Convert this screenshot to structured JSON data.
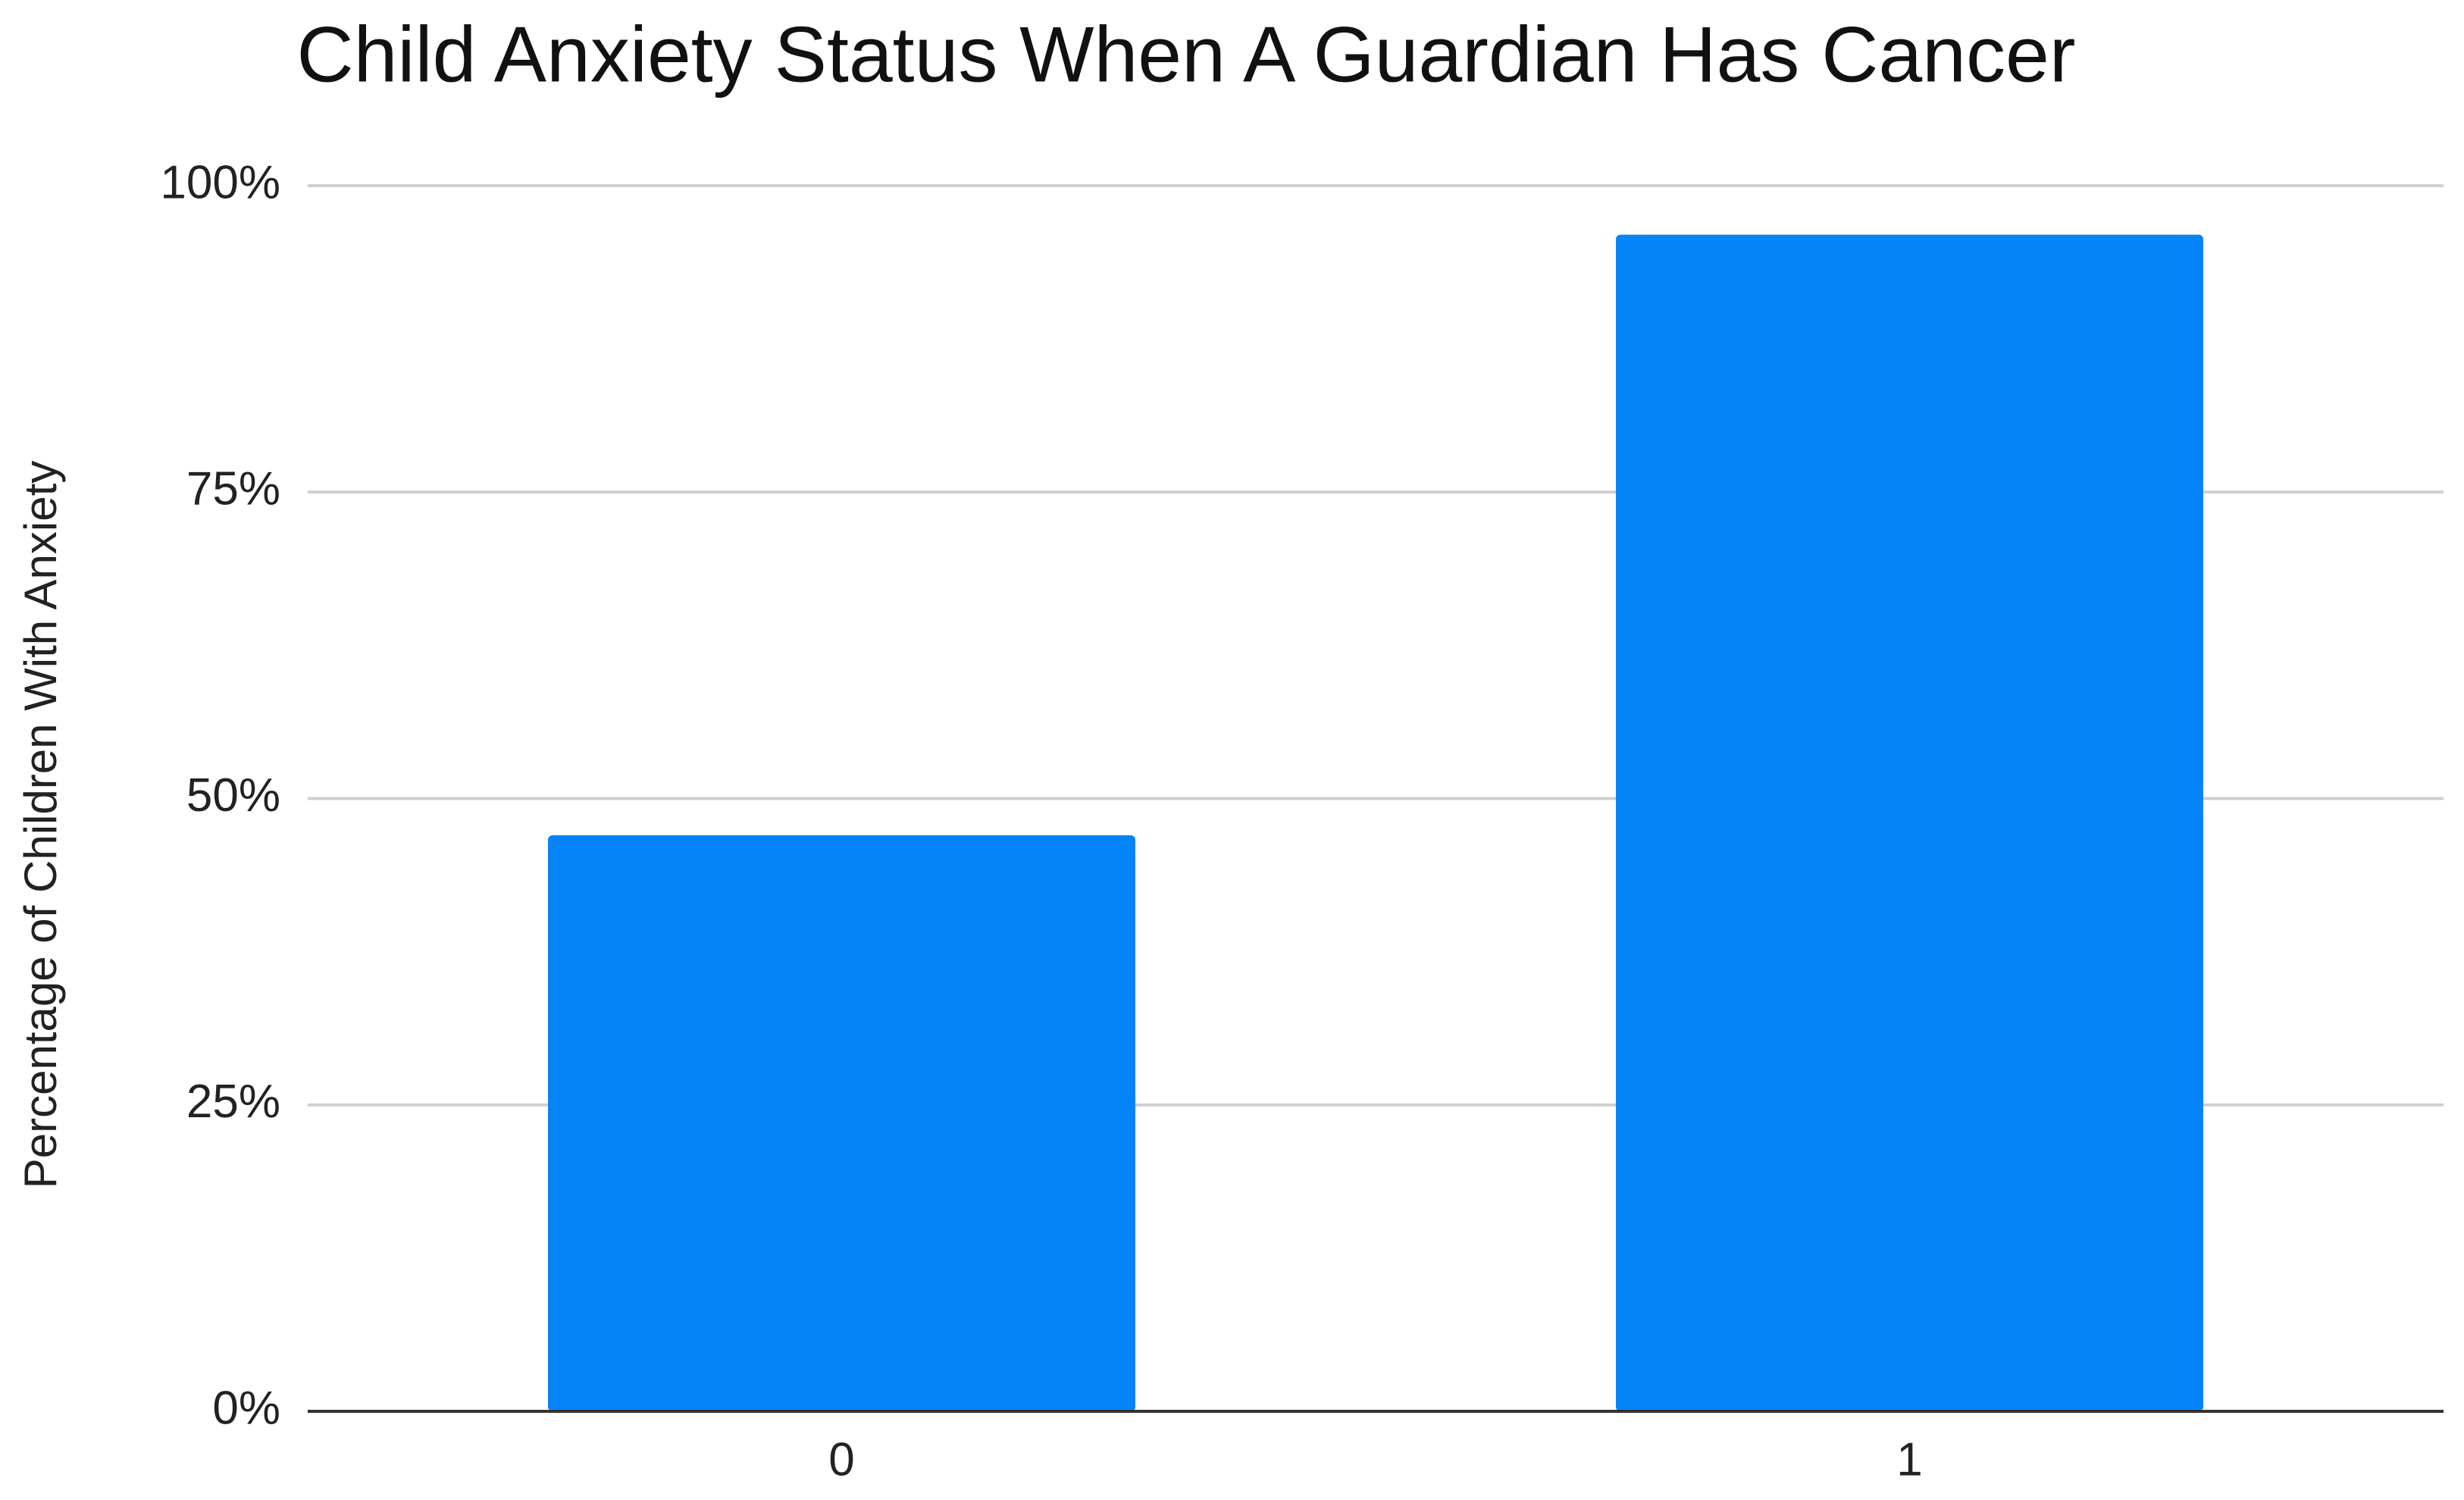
{
  "chart_data": {
    "type": "bar",
    "title": "Child Anxiety Status When A Guardian Has Cancer",
    "y_label": "Percentage of Children With Anxiety",
    "categories": [
      "0",
      "1"
    ],
    "values": [
      47,
      96
    ],
    "color": "#0584f7",
    "ylim": [
      0,
      100
    ],
    "yticks": [
      {
        "value": 0,
        "label": "0%"
      },
      {
        "value": 25,
        "label": "25%"
      },
      {
        "value": 50,
        "label": "50%"
      },
      {
        "value": 75,
        "label": "75%"
      },
      {
        "value": 100,
        "label": "100%"
      }
    ],
    "grid": true
  }
}
